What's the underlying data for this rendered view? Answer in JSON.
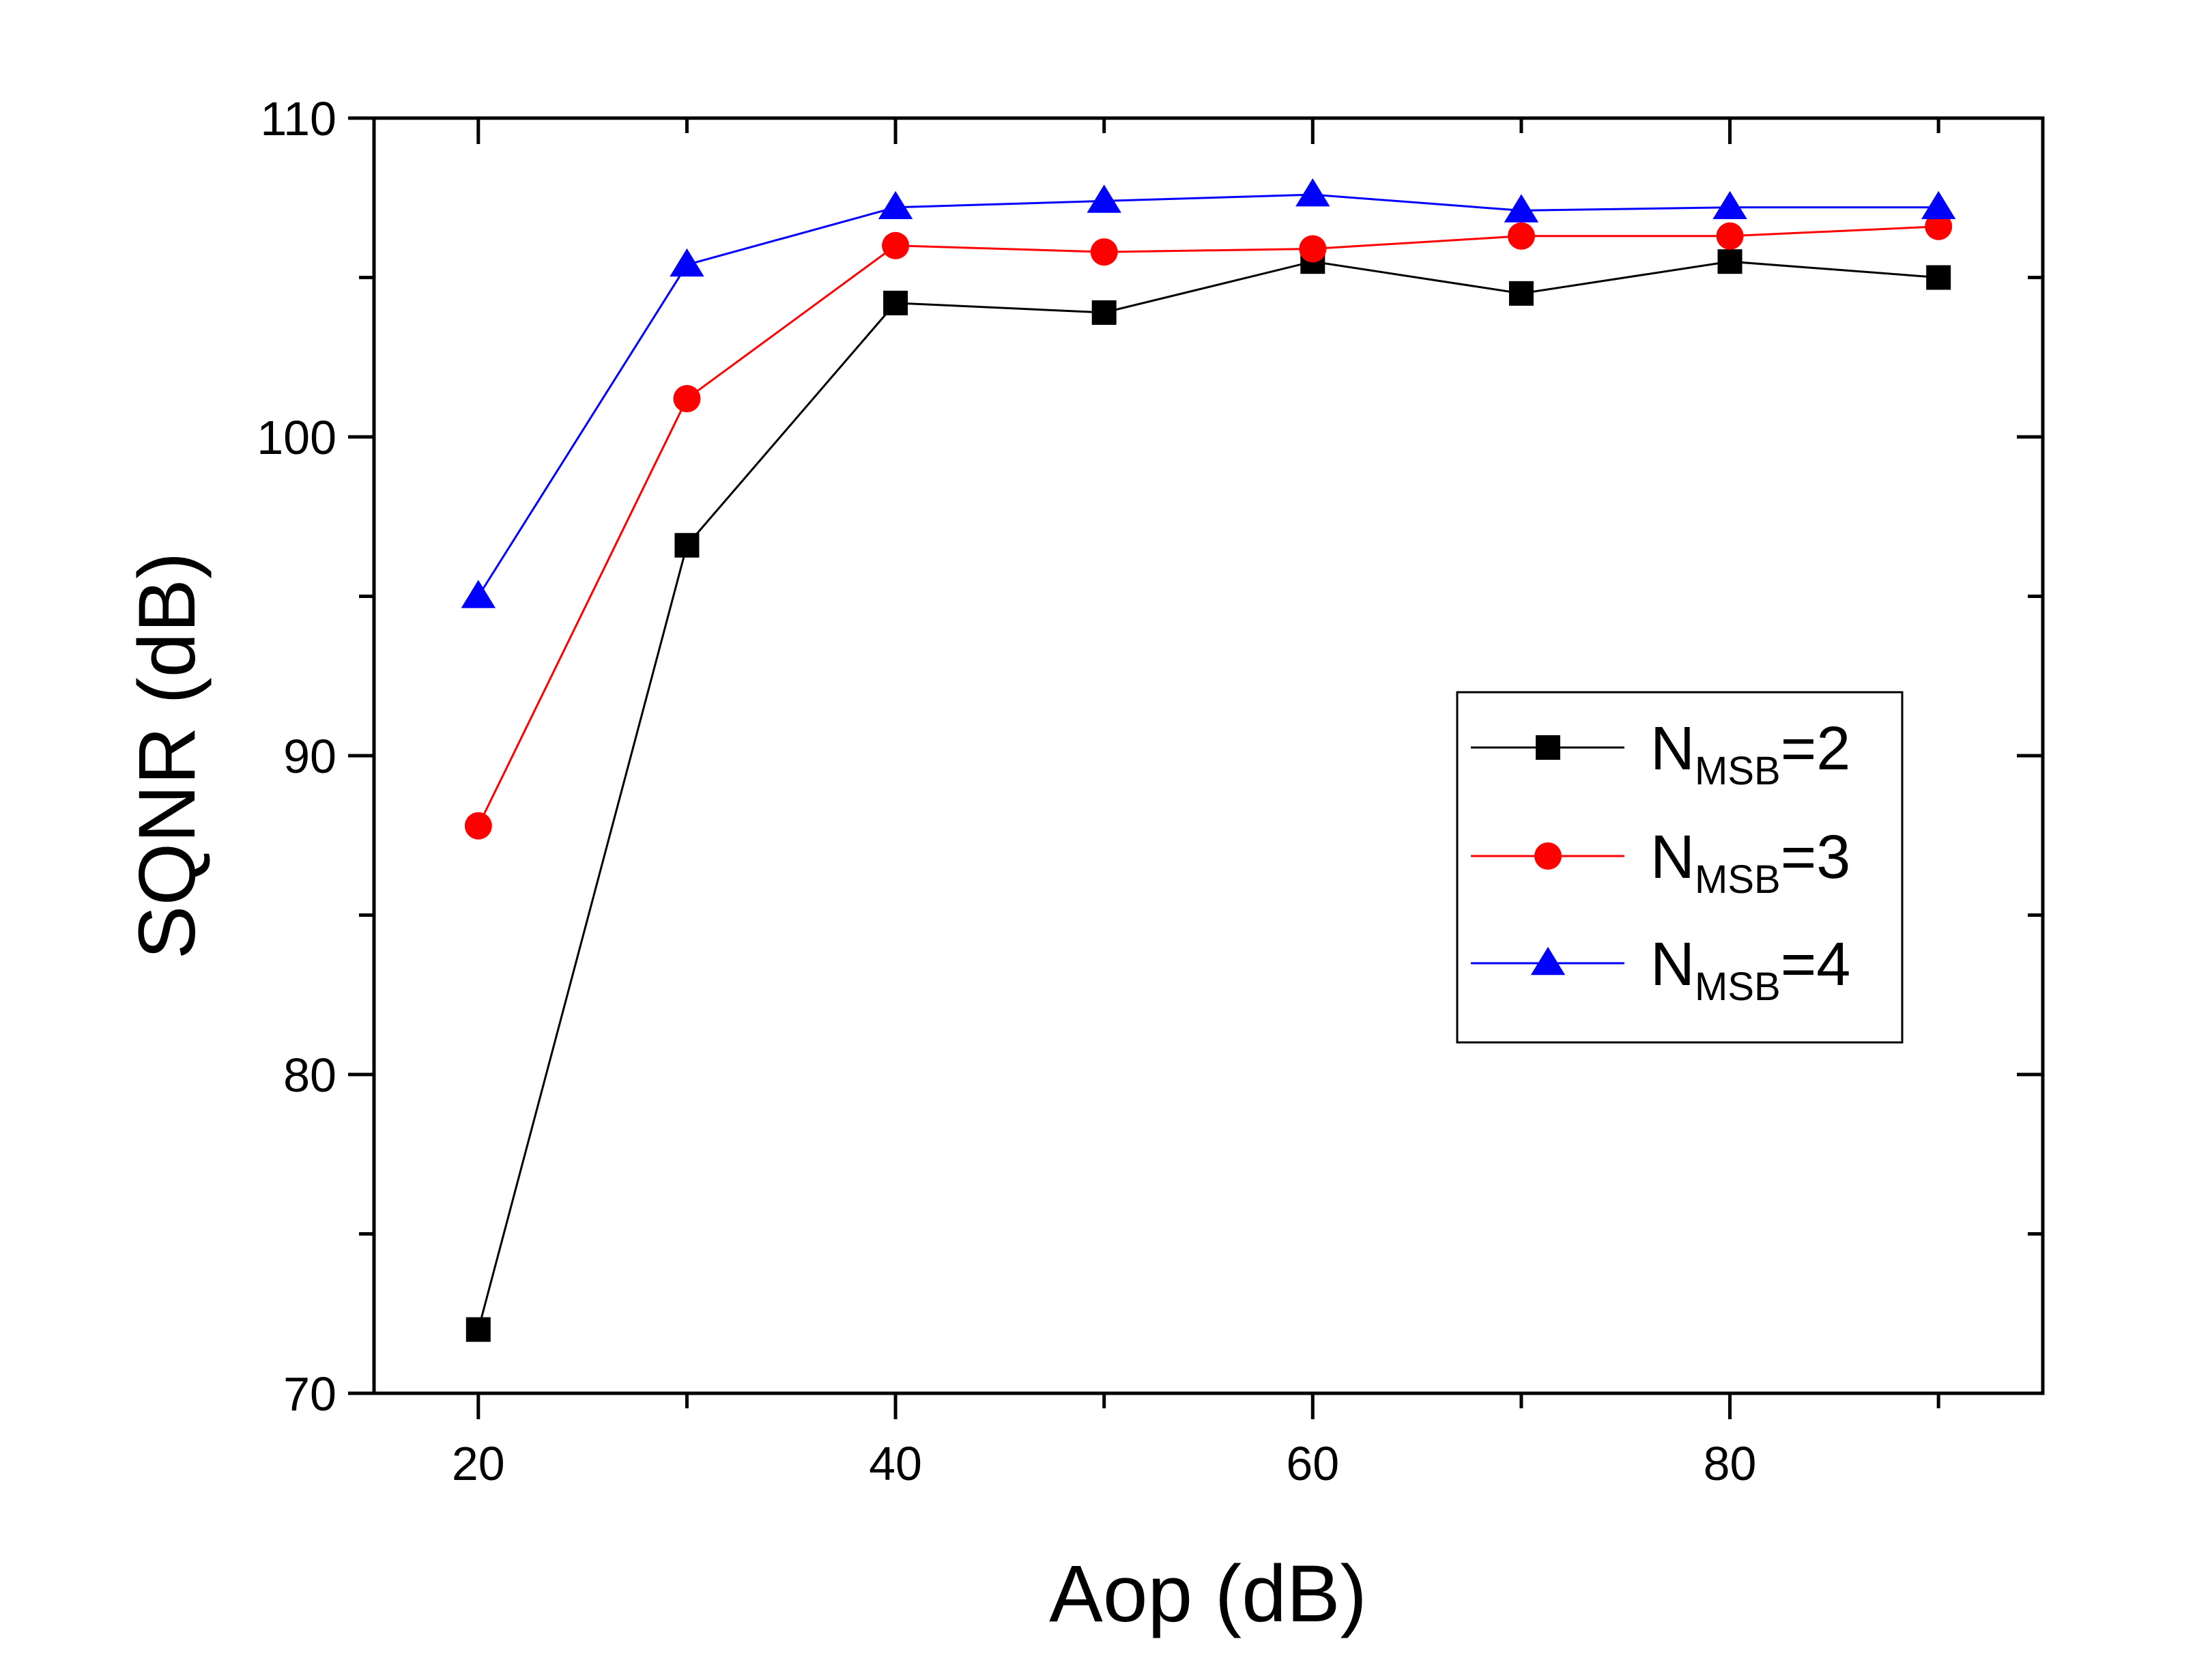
{
  "chart_data": {
    "type": "line",
    "xlabel": "Aop (dB)",
    "ylabel": "SQNR (dB)",
    "xlim": [
      15,
      95
    ],
    "ylim": [
      70,
      110
    ],
    "x_ticks": [
      20,
      40,
      60,
      80
    ],
    "x_minor_ticks": [
      30,
      50,
      70,
      90
    ],
    "y_ticks": [
      70,
      80,
      90,
      100,
      110
    ],
    "y_minor_ticks": [
      75,
      85,
      95,
      105
    ],
    "grid": false,
    "legend_position": "right-middle",
    "x": [
      20,
      30,
      40,
      50,
      60,
      70,
      80,
      90
    ],
    "series": [
      {
        "name_main": "N",
        "name_sub": "MSB",
        "name_tail": "=2",
        "marker": "square",
        "color": "#000000",
        "values": [
          72.0,
          96.6,
          104.2,
          103.9,
          105.5,
          104.5,
          105.5,
          105.0
        ]
      },
      {
        "name_main": "N",
        "name_sub": "MSB",
        "name_tail": "=3",
        "marker": "circle",
        "color": "#ff0000",
        "values": [
          87.8,
          101.2,
          106.0,
          105.8,
          105.9,
          106.3,
          106.3,
          106.6
        ]
      },
      {
        "name_main": "N",
        "name_sub": "MSB",
        "name_tail": "=4",
        "marker": "triangle",
        "color": "#0000ff",
        "values": [
          95.0,
          105.4,
          107.2,
          107.4,
          107.6,
          107.1,
          107.2,
          107.2
        ]
      }
    ]
  }
}
